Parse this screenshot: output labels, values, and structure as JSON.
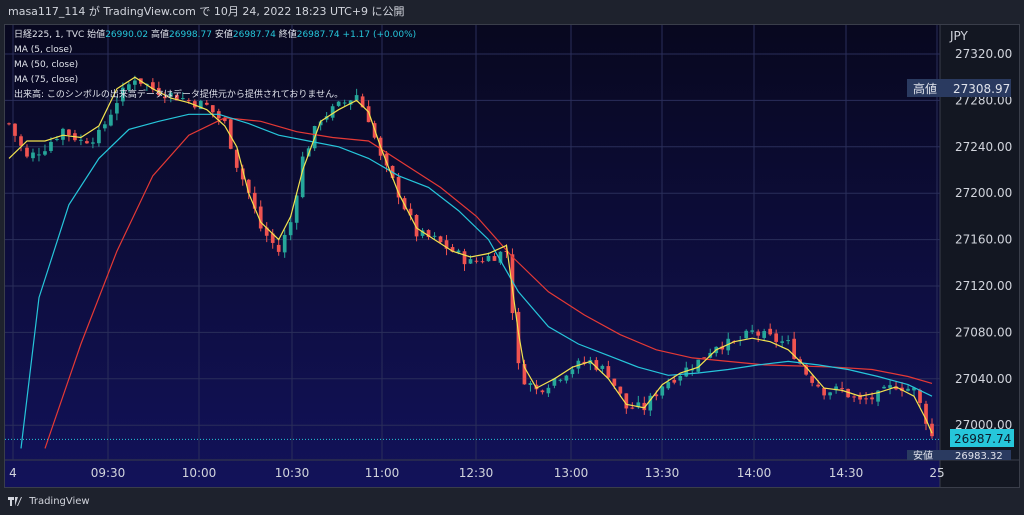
{
  "header": {
    "text": "masa117_114 が TradingView.com で 10月 24, 2022 18:23 UTC+9 に公開"
  },
  "legend": {
    "symbol_line_prefix": "日経225, 1, TVC",
    "open_label": "始値",
    "open_value": "26990.02",
    "high_label": "高値",
    "high_value": "26998.77",
    "low_label": "安値",
    "low_value": "26987.74",
    "close_label": "終値",
    "close_value": "26987.74",
    "change": "+1.17 (+0.00%)",
    "ma1": "MA (5, close)",
    "ma2": "MA (50, close)",
    "ma3": "MA (75, close)",
    "volume_note": "出来高: このシンボルの出来高データはデータ提供元から提供されておりません。"
  },
  "axis": {
    "currency": "JPY",
    "high_tag_label": "高値",
    "high_tag_value": "27308.97",
    "last_value": "26987.74",
    "low_tag_label": "安値",
    "low_tag_value": "26983.32"
  },
  "footer": {
    "brand": "TradingView"
  },
  "colors": {
    "up": "#26a69a",
    "down": "#ef5350",
    "ma5": "#f3e34f",
    "ma50": "#26c6da",
    "ma75": "#e53935",
    "bg": "#0d0c35"
  },
  "chart_data": {
    "type": "candlestick",
    "y_ticks": [
      27000,
      27040,
      27080,
      27120,
      27160,
      27200,
      27240,
      27280,
      27320
    ],
    "x_ticks": [
      "4",
      "09:30",
      "10:00",
      "10:30",
      "11:00",
      "12:30",
      "13:00",
      "13:30",
      "14:00",
      "14:30",
      "25"
    ],
    "ylim": [
      26970,
      27345
    ],
    "close_path": [
      [
        0,
        27260
      ],
      [
        3,
        27230
      ],
      [
        6,
        27240
      ],
      [
        9,
        27255
      ],
      [
        12,
        27245
      ],
      [
        15,
        27250
      ],
      [
        18,
        27280
      ],
      [
        21,
        27300
      ],
      [
        24,
        27290
      ],
      [
        27,
        27285
      ],
      [
        30,
        27280
      ],
      [
        33,
        27275
      ],
      [
        36,
        27260
      ],
      [
        38,
        27225
      ],
      [
        40,
        27200
      ],
      [
        42,
        27170
      ],
      [
        45,
        27150
      ],
      [
        47,
        27175
      ],
      [
        49,
        27230
      ],
      [
        52,
        27265
      ],
      [
        55,
        27275
      ],
      [
        58,
        27285
      ],
      [
        60,
        27265
      ],
      [
        62,
        27230
      ],
      [
        65,
        27200
      ],
      [
        68,
        27165
      ],
      [
        71,
        27160
      ],
      [
        74,
        27150
      ],
      [
        77,
        27140
      ],
      [
        80,
        27145
      ],
      [
        83,
        27150
      ],
      [
        85,
        27050
      ],
      [
        86,
        27040
      ],
      [
        88,
        27030
      ],
      [
        91,
        27040
      ],
      [
        94,
        27050
      ],
      [
        97,
        27055
      ],
      [
        100,
        27045
      ],
      [
        103,
        27015
      ],
      [
        106,
        27015
      ],
      [
        109,
        27035
      ],
      [
        112,
        27045
      ],
      [
        115,
        27055
      ],
      [
        118,
        27070
      ],
      [
        121,
        27070
      ],
      [
        124,
        27080
      ],
      [
        127,
        27075
      ],
      [
        130,
        27070
      ],
      [
        133,
        27045
      ],
      [
        136,
        27030
      ],
      [
        139,
        27030
      ],
      [
        142,
        27020
      ],
      [
        145,
        27025
      ],
      [
        148,
        27035
      ],
      [
        151,
        27030
      ],
      [
        153,
        27005
      ],
      [
        154,
        26990
      ]
    ],
    "ma5": [
      [
        0,
        27230
      ],
      [
        3,
        27245
      ],
      [
        6,
        27245
      ],
      [
        9,
        27250
      ],
      [
        12,
        27248
      ],
      [
        15,
        27258
      ],
      [
        18,
        27290
      ],
      [
        21,
        27300
      ],
      [
        24,
        27290
      ],
      [
        27,
        27282
      ],
      [
        30,
        27278
      ],
      [
        33,
        27272
      ],
      [
        36,
        27258
      ],
      [
        38,
        27240
      ],
      [
        40,
        27200
      ],
      [
        42,
        27175
      ],
      [
        45,
        27160
      ],
      [
        47,
        27180
      ],
      [
        49,
        27220
      ],
      [
        52,
        27262
      ],
      [
        55,
        27272
      ],
      [
        58,
        27280
      ],
      [
        60,
        27270
      ],
      [
        62,
        27240
      ],
      [
        65,
        27200
      ],
      [
        68,
        27170
      ],
      [
        71,
        27160
      ],
      [
        74,
        27150
      ],
      [
        77,
        27145
      ],
      [
        80,
        27148
      ],
      [
        83,
        27155
      ],
      [
        85,
        27080
      ],
      [
        86,
        27050
      ],
      [
        88,
        27032
      ],
      [
        91,
        27040
      ],
      [
        94,
        27050
      ],
      [
        97,
        27055
      ],
      [
        100,
        27040
      ],
      [
        103,
        27018
      ],
      [
        106,
        27015
      ],
      [
        109,
        27035
      ],
      [
        112,
        27045
      ],
      [
        115,
        27050
      ],
      [
        118,
        27065
      ],
      [
        121,
        27072
      ],
      [
        124,
        27075
      ],
      [
        127,
        27072
      ],
      [
        130,
        27065
      ],
      [
        133,
        27050
      ],
      [
        136,
        27032
      ],
      [
        139,
        27030
      ],
      [
        142,
        27025
      ],
      [
        145,
        27028
      ],
      [
        148,
        27033
      ],
      [
        151,
        27025
      ],
      [
        153,
        27005
      ],
      [
        154,
        26993
      ]
    ],
    "ma50": [
      [
        2,
        26980
      ],
      [
        5,
        27110
      ],
      [
        10,
        27190
      ],
      [
        15,
        27230
      ],
      [
        20,
        27255
      ],
      [
        25,
        27262
      ],
      [
        30,
        27268
      ],
      [
        35,
        27268
      ],
      [
        40,
        27260
      ],
      [
        45,
        27250
      ],
      [
        50,
        27245
      ],
      [
        55,
        27240
      ],
      [
        60,
        27230
      ],
      [
        65,
        27215
      ],
      [
        70,
        27205
      ],
      [
        75,
        27185
      ],
      [
        80,
        27160
      ],
      [
        85,
        27115
      ],
      [
        90,
        27085
      ],
      [
        95,
        27070
      ],
      [
        100,
        27060
      ],
      [
        105,
        27050
      ],
      [
        110,
        27043
      ],
      [
        115,
        27045
      ],
      [
        120,
        27048
      ],
      [
        125,
        27052
      ],
      [
        130,
        27055
      ],
      [
        135,
        27052
      ],
      [
        140,
        27048
      ],
      [
        145,
        27042
      ],
      [
        150,
        27035
      ],
      [
        154,
        27025
      ]
    ],
    "ma75": [
      [
        6,
        26980
      ],
      [
        12,
        27070
      ],
      [
        18,
        27150
      ],
      [
        24,
        27215
      ],
      [
        30,
        27250
      ],
      [
        36,
        27265
      ],
      [
        42,
        27262
      ],
      [
        48,
        27253
      ],
      [
        54,
        27248
      ],
      [
        60,
        27245
      ],
      [
        66,
        27225
      ],
      [
        72,
        27205
      ],
      [
        78,
        27180
      ],
      [
        84,
        27145
      ],
      [
        90,
        27115
      ],
      [
        96,
        27095
      ],
      [
        102,
        27078
      ],
      [
        108,
        27065
      ],
      [
        114,
        27058
      ],
      [
        120,
        27055
      ],
      [
        126,
        27052
      ],
      [
        132,
        27051
      ],
      [
        138,
        27050
      ],
      [
        144,
        27048
      ],
      [
        150,
        27042
      ],
      [
        154,
        27036
      ]
    ]
  }
}
